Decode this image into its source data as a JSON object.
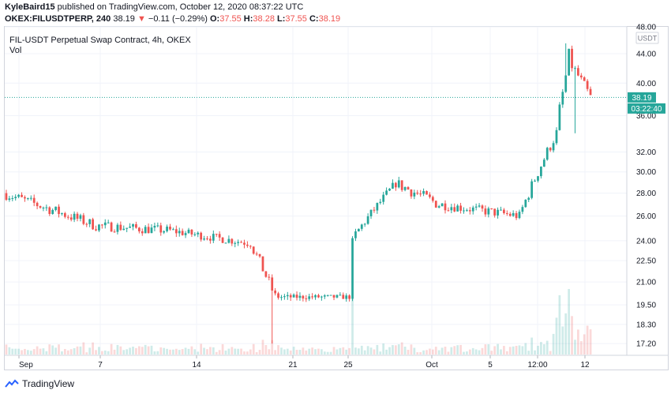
{
  "header": {
    "author": "KyleBaird15",
    "published_text": " published on TradingView.com, October 12, 2020 08:37:22 UTC",
    "symbol": "OKEX:FILUSDTPERP, 240",
    "last": "38.19",
    "change": "−0.11 (−0.29%)",
    "o_label": "O:",
    "o_value": "37.55",
    "h_label": "H:",
    "h_value": "38.28",
    "l_label": "L:",
    "l_value": "37.55",
    "c_label": "C:",
    "c_value": "38.19"
  },
  "legend": {
    "title": "FIL-USDT Perpetual Swap Contract, 4h, OKEX",
    "vol": "Vol"
  },
  "price_axis": {
    "currency": "USDT",
    "last_price_label": "38.19",
    "countdown_label": "03:22:40"
  },
  "footer": {
    "brand": "TradingView"
  },
  "colors": {
    "up": "#26a69a",
    "down": "#ef5350",
    "accent": "#4caf50",
    "grid": "#e0e3eb",
    "last_line": "#26a69a"
  },
  "chart_data": {
    "type": "candlestick",
    "title": "FIL-USDT Perpetual Swap Contract, 4h, OKEX",
    "y_scale": "log",
    "ylim": [
      16.6,
      48
    ],
    "y_ticks": [
      "48.00",
      "44.00",
      "40.00",
      "36.00",
      "32.00",
      "30.00",
      "28.00",
      "26.00",
      "24.00",
      "22.50",
      "21.00",
      "19.50",
      "18.30",
      "17.20"
    ],
    "x_ticks": [
      "Sep",
      "7",
      "14",
      "21",
      "25",
      "Oct",
      "5",
      "12:00",
      "12"
    ],
    "segments": [
      {
        "bars": 30,
        "start": 28.0,
        "end": 25.2,
        "noise": 0.018
      },
      {
        "bars": 24,
        "start": 25.2,
        "end": 24.8,
        "noise": 0.016
      },
      {
        "bars": 26,
        "start": 24.8,
        "end": 23.8,
        "noise": 0.014
      },
      {
        "bars": 8,
        "start": 23.8,
        "end": 20.0,
        "noise": 0.02
      },
      {
        "bars": 24,
        "start": 20.0,
        "end": 20.0,
        "noise": 0.008
      },
      {
        "bars": 1,
        "start": 20.0,
        "end": 24.2,
        "noise": 0.0
      },
      {
        "bars": 14,
        "start": 24.2,
        "end": 28.9,
        "noise": 0.015
      },
      {
        "bars": 14,
        "start": 28.9,
        "end": 27.0,
        "noise": 0.02
      },
      {
        "bars": 26,
        "start": 27.0,
        "end": 26.0,
        "noise": 0.016
      },
      {
        "bars": 12,
        "start": 26.0,
        "end": 34.0,
        "noise": 0.02
      },
      {
        "bars": 4,
        "start": 34.0,
        "end": 43.0,
        "noise": 0.04
      },
      {
        "bars": 7,
        "start": 43.0,
        "end": 38.19,
        "noise": 0.02
      }
    ],
    "last": 38.19
  }
}
